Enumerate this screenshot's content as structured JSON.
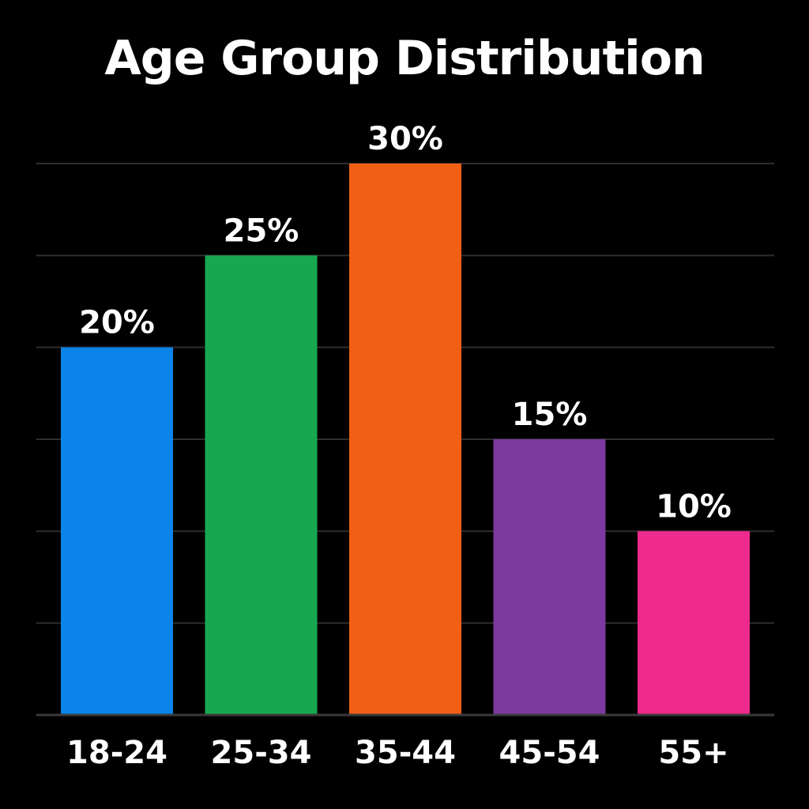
{
  "chart_data": {
    "type": "bar",
    "title": "Age Group Distribution",
    "xlabel": "",
    "ylabel": "",
    "categories": [
      "18-24",
      "25-34",
      "35-44",
      "45-54",
      "55+"
    ],
    "values": [
      20,
      25,
      30,
      15,
      10
    ],
    "value_labels": [
      "20%",
      "25%",
      "30%",
      "15%",
      "10%"
    ],
    "colors": [
      "#0a84e8",
      "#17a84f",
      "#f15f15",
      "#7b3a9e",
      "#ee2a8c"
    ],
    "ylim": [
      0,
      30
    ],
    "grid": true,
    "gridline_values": [
      5,
      10,
      15,
      20,
      25,
      30
    ],
    "legend": "none"
  }
}
